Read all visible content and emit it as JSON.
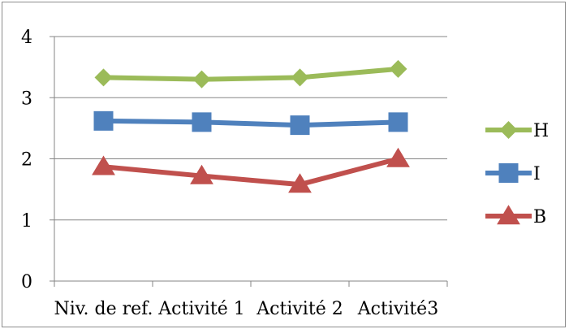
{
  "chart_data": {
    "type": "line",
    "title": "",
    "xlabel": "",
    "ylabel": "",
    "categories": [
      "Niv. de ref.",
      "Activité 1",
      "Activité 2",
      "Activité3"
    ],
    "ylim": [
      0,
      4
    ],
    "yticks": [
      0,
      1,
      2,
      3,
      4
    ],
    "grid": true,
    "legend_position": "right",
    "series": [
      {
        "name": "H",
        "values": [
          3.33,
          3.3,
          3.33,
          3.47
        ],
        "color": "#9bbb59",
        "marker": "diamond"
      },
      {
        "name": "I",
        "values": [
          2.62,
          2.6,
          2.55,
          2.6
        ],
        "color": "#4f81bd",
        "marker": "square"
      },
      {
        "name": "B",
        "values": [
          1.87,
          1.72,
          1.58,
          2.0
        ],
        "color": "#c0504d",
        "marker": "triangle"
      }
    ]
  }
}
